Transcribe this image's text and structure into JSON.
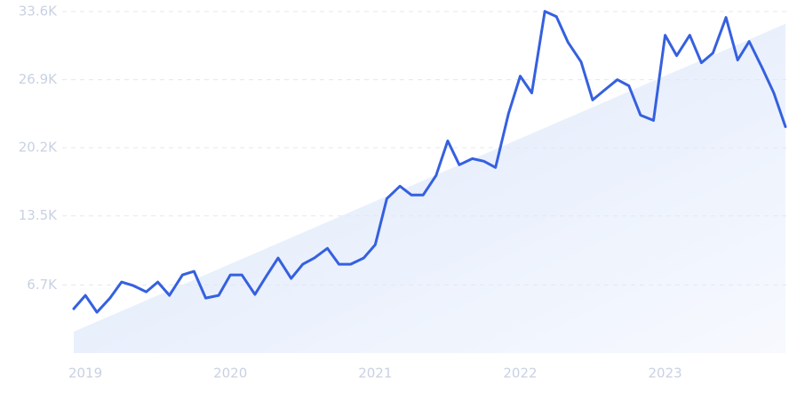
{
  "chart_data": {
    "type": "line",
    "x": [
      2018.92,
      2019.0,
      2019.08,
      2019.17,
      2019.25,
      2019.33,
      2019.42,
      2019.5,
      2019.58,
      2019.67,
      2019.75,
      2019.83,
      2019.92,
      2020.0,
      2020.08,
      2020.17,
      2020.25,
      2020.33,
      2020.42,
      2020.5,
      2020.58,
      2020.67,
      2020.75,
      2020.83,
      2020.92,
      2021.0,
      2021.08,
      2021.17,
      2021.25,
      2021.33,
      2021.42,
      2021.5,
      2021.58,
      2021.67,
      2021.75,
      2021.83,
      2021.92,
      2022.0,
      2022.08,
      2022.17,
      2022.25,
      2022.33,
      2022.42,
      2022.5,
      2022.58,
      2022.67,
      2022.75,
      2022.83,
      2022.92,
      2023.0,
      2023.08,
      2023.17,
      2023.25,
      2023.33,
      2023.42,
      2023.5,
      2023.58,
      2023.67,
      2023.75,
      2023.83
    ],
    "values": [
      4370,
      5680,
      4020,
      5420,
      6990,
      6640,
      6030,
      6990,
      5680,
      7690,
      8040,
      5420,
      5680,
      7690,
      7690,
      5770,
      7600,
      9350,
      7340,
      8740,
      9350,
      10310,
      8740,
      8740,
      9350,
      10660,
      15200,
      16420,
      15550,
      15550,
      17470,
      20880,
      18520,
      19130,
      18870,
      18260,
      23590,
      27250,
      25590,
      33630,
      33110,
      30570,
      28650,
      24900,
      25860,
      26900,
      26290,
      23410,
      22890,
      31270,
      29260,
      31270,
      28560,
      29520,
      33020,
      28830,
      30660,
      28040,
      25590,
      22270
    ],
    "color": "#3560df",
    "trend_values": [
      2100,
      32400
    ],
    "trend_color": "#dce8fb",
    "xlim": [
      2018.92,
      2023.83
    ],
    "xticks": [
      2019,
      2020,
      2021,
      2022,
      2023
    ],
    "ylim": [
      0,
      33600
    ],
    "yticks": [
      {
        "value": 6700,
        "label": "6.7K"
      },
      {
        "value": 13500,
        "label": "13.5K"
      },
      {
        "value": 20200,
        "label": "20.2K"
      },
      {
        "value": 26900,
        "label": "26.9K"
      },
      {
        "value": 33600,
        "label": "33.6K"
      }
    ],
    "grid": true
  }
}
